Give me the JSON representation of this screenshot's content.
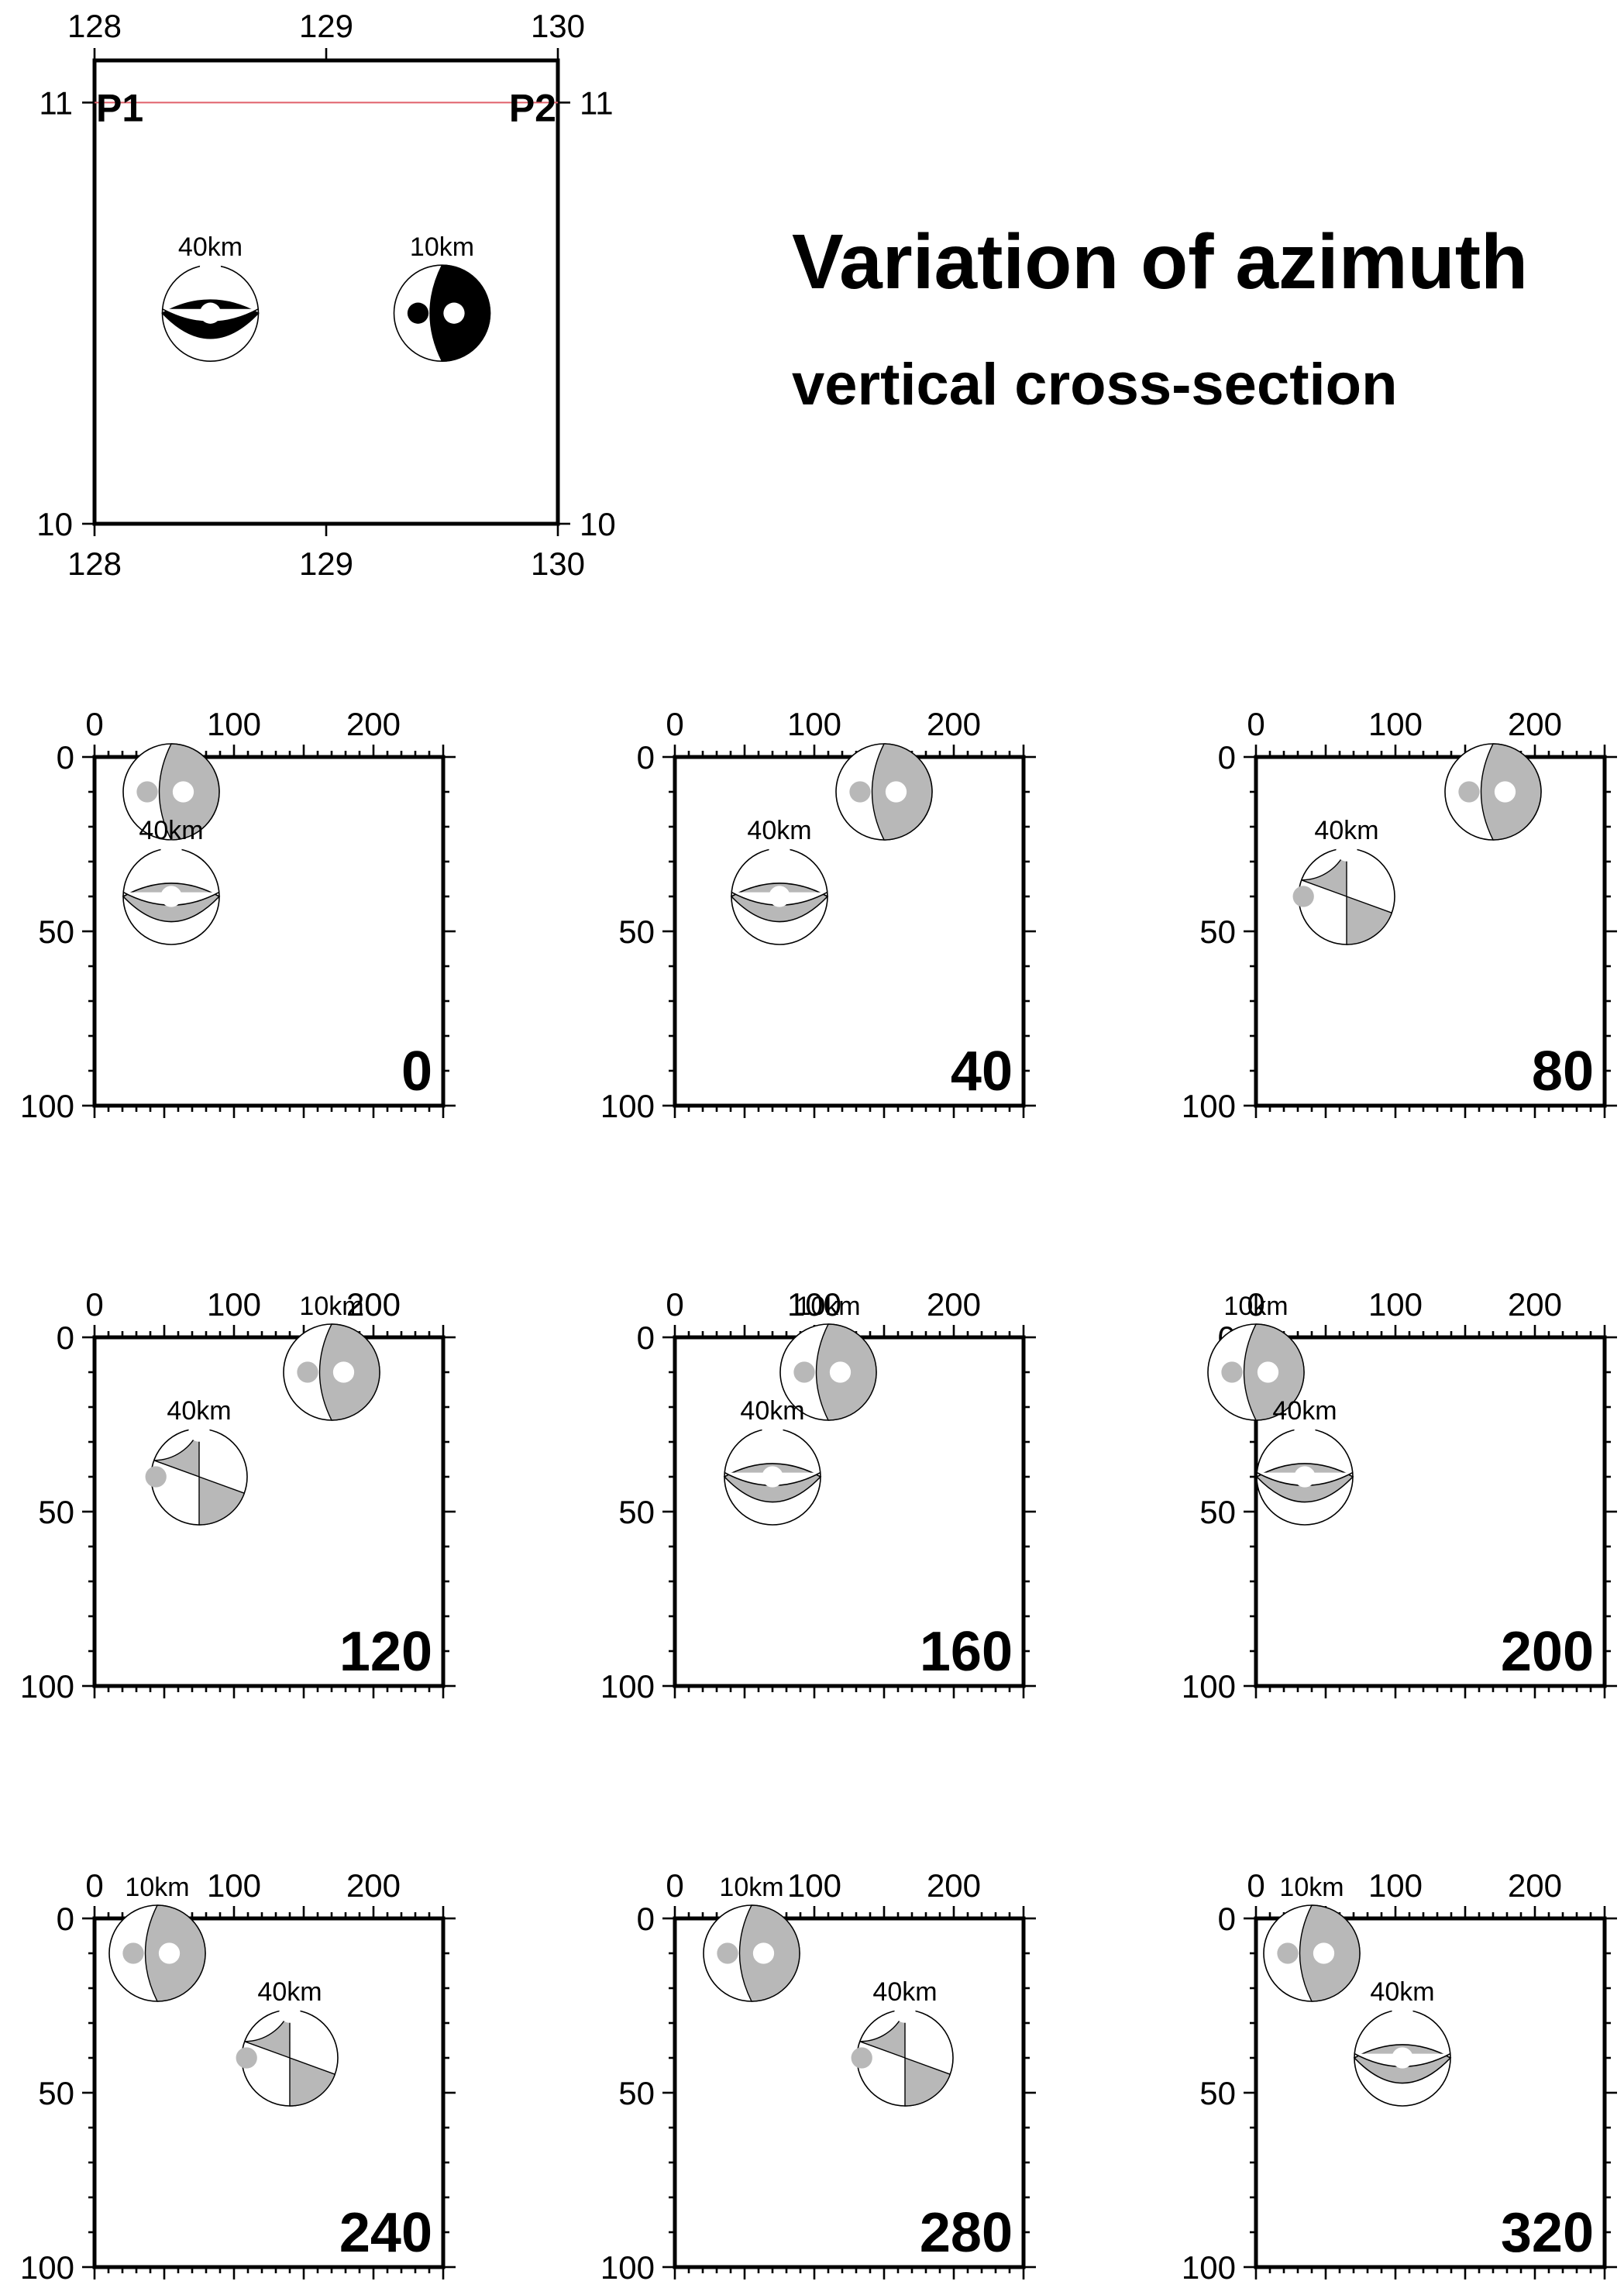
{
  "title": "Variation of azimuth",
  "subtitle": "vertical cross-section",
  "colors": {
    "frame": "#000000",
    "profile_line": "#e0606a",
    "compressive_map": "#000000",
    "compressive_section": "#b8b8b8",
    "axis_dot_section": "#ffffff"
  },
  "map": {
    "x_ticks": [
      "128",
      "129",
      "130"
    ],
    "y_ticks": [
      "11",
      "10"
    ],
    "xlim": [
      128,
      130
    ],
    "ylim": [
      10,
      11.1
    ],
    "profile": {
      "start": {
        "label": "P1",
        "lon": 128,
        "lat": 11
      },
      "end": {
        "label": "P2",
        "lon": 130,
        "lat": 11
      }
    },
    "events": [
      {
        "label": "40km",
        "lon": 128.5,
        "lat": 10.5,
        "icon": "beachball-icon"
      },
      {
        "label": "10km",
        "lon": 129.5,
        "lat": 10.5,
        "icon": "beachball-icon"
      }
    ]
  },
  "section_axes": {
    "x_ticks": [
      "0",
      "100",
      "200"
    ],
    "y_ticks": [
      "0",
      "50",
      "100"
    ],
    "xlim": [
      0,
      250
    ],
    "ylim": [
      0,
      100
    ]
  },
  "panels": [
    {
      "azimuth": "0",
      "events": [
        {
          "label": "",
          "x": 55,
          "depth": 10,
          "style": "vert"
        },
        {
          "label": "40km",
          "x": 55,
          "depth": 40,
          "style": "lens"
        }
      ]
    },
    {
      "azimuth": "40",
      "events": [
        {
          "label": "",
          "x": 150,
          "depth": 10,
          "style": "vert"
        },
        {
          "label": "40km",
          "x": 75,
          "depth": 40,
          "style": "lens"
        }
      ]
    },
    {
      "azimuth": "80",
      "events": [
        {
          "label": "",
          "x": 170,
          "depth": 10,
          "style": "vert"
        },
        {
          "label": "40km",
          "x": 65,
          "depth": 40,
          "style": "cross"
        }
      ]
    },
    {
      "azimuth": "120",
      "events": [
        {
          "label": "10km",
          "x": 170,
          "depth": 10,
          "style": "vert"
        },
        {
          "label": "40km",
          "x": 75,
          "depth": 40,
          "style": "cross"
        }
      ]
    },
    {
      "azimuth": "160",
      "events": [
        {
          "label": "10km",
          "x": 110,
          "depth": 10,
          "style": "vert"
        },
        {
          "label": "40km",
          "x": 70,
          "depth": 40,
          "style": "lens"
        }
      ]
    },
    {
      "azimuth": "200",
      "events": [
        {
          "label": "10km",
          "x": 0,
          "depth": 10,
          "style": "vert"
        },
        {
          "label": "40km",
          "x": 35,
          "depth": 40,
          "style": "lens"
        }
      ]
    },
    {
      "azimuth": "240",
      "events": [
        {
          "label": "10km",
          "x": 45,
          "depth": 10,
          "style": "vert"
        },
        {
          "label": "40km",
          "x": 140,
          "depth": 40,
          "style": "cross"
        }
      ]
    },
    {
      "azimuth": "280",
      "events": [
        {
          "label": "10km",
          "x": 55,
          "depth": 10,
          "style": "vert"
        },
        {
          "label": "40km",
          "x": 165,
          "depth": 40,
          "style": "cross"
        }
      ]
    },
    {
      "azimuth": "320",
      "events": [
        {
          "label": "10km",
          "x": 40,
          "depth": 10,
          "style": "vert"
        },
        {
          "label": "40km",
          "x": 105,
          "depth": 40,
          "style": "lens"
        }
      ]
    }
  ]
}
